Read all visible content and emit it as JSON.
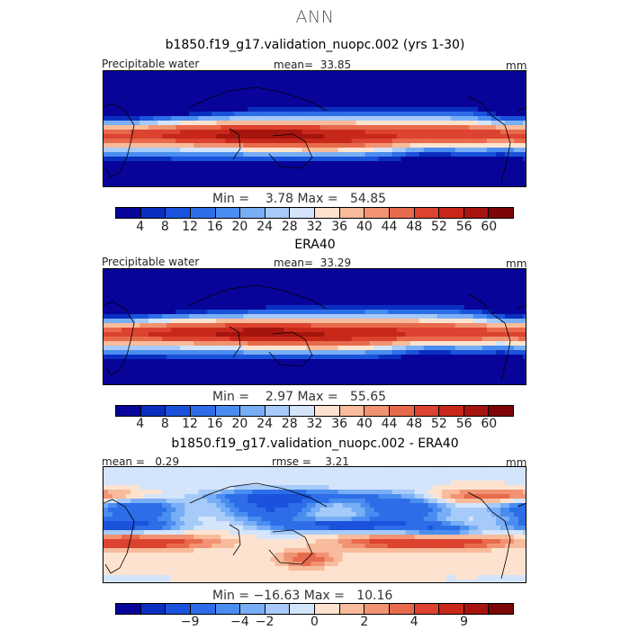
{
  "season": "ANN",
  "colors": {
    "abs_scale": [
      "#08049a",
      "#0a2fc0",
      "#1a52dc",
      "#2d6ee8",
      "#4a8df0",
      "#78aef6",
      "#a6caf9",
      "#d3e4fb",
      "#fde3cf",
      "#f8bb9b",
      "#f19372",
      "#e86a4c",
      "#dc4330",
      "#c8281a",
      "#a6140e",
      "#7d0505"
    ],
    "diff_scale": [
      "#08049a",
      "#0a2fc0",
      "#1a52dc",
      "#2d6ee8",
      "#4a8df0",
      "#78aef6",
      "#a6caf9",
      "#d3e4fb",
      "#fde3cf",
      "#f8bb9b",
      "#f19372",
      "#e86a4c",
      "#dc4330",
      "#c8281a",
      "#a6140e",
      "#7d0505"
    ]
  },
  "chart_data": [
    {
      "type": "heatmap",
      "title": "b1850.f19_g17.validation_nuopc.002 (yrs 1-30)",
      "variable": "Precipitable water",
      "units": "mm",
      "mean_label": "mean=",
      "mean": "33.85",
      "min_label": "Min =",
      "min": "3.78",
      "max_label": "Max =",
      "max": "54.85",
      "levels": [
        4,
        8,
        12,
        16,
        20,
        24,
        28,
        32,
        36,
        40,
        44,
        48,
        52,
        56,
        60
      ],
      "tick_labels": [
        "4",
        "8",
        "12",
        "16",
        "20",
        "24",
        "28",
        "32",
        "36",
        "40",
        "44",
        "48",
        "52",
        "56",
        "60"
      ]
    },
    {
      "type": "heatmap",
      "title": "ERA40",
      "variable": "Precipitable water",
      "units": "mm",
      "mean_label": "mean=",
      "mean": "33.29",
      "min_label": "Min =",
      "min": "2.97",
      "max_label": "Max =",
      "max": "55.65",
      "levels": [
        4,
        8,
        12,
        16,
        20,
        24,
        28,
        32,
        36,
        40,
        44,
        48,
        52,
        56,
        60
      ],
      "tick_labels": [
        "4",
        "8",
        "12",
        "16",
        "20",
        "24",
        "28",
        "32",
        "36",
        "40",
        "44",
        "48",
        "52",
        "56",
        "60"
      ]
    },
    {
      "type": "heatmap",
      "title": "b1850.f19_g17.validation_nuopc.002 - ERA40",
      "units": "mm",
      "mean_label": "mean =",
      "mean": "0.29",
      "rmse_label": "rmse =",
      "rmse": "3.21",
      "min_label": "Min =",
      "min": "−16.63",
      "max_label": "Max =",
      "max": "10.16",
      "tick_labels": [
        "−9",
        "−4",
        "−2",
        "0",
        "2",
        "4",
        "9"
      ],
      "tick_positions": [
        3,
        5,
        6,
        8,
        10,
        12,
        14
      ]
    }
  ]
}
